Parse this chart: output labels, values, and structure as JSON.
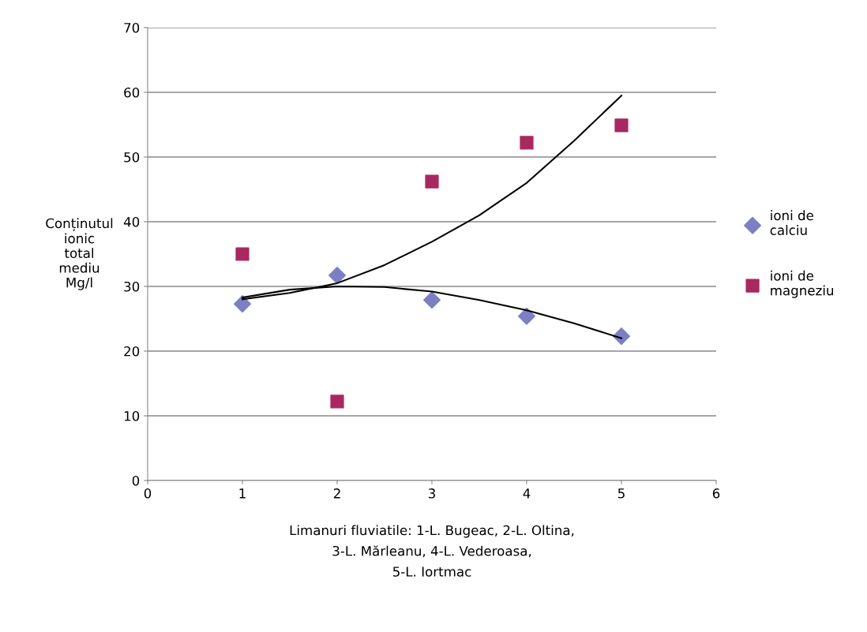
{
  "chart_data": {
    "type": "scatter",
    "ylabel": "Conținutul\nionic\ntotal\nmediu\nMg/l",
    "xlabel": "Limanuri fluviatile: 1-L. Bugeac, 2-L. Oltina,\n3-L. Mărleanu, 4-L. Vederoasa,\n5-L. Iortmac",
    "x": [
      1,
      2,
      3,
      4,
      5
    ],
    "series": [
      {
        "name": "ioni de\ncalciu",
        "color": "#7b7fc4",
        "marker": "diamond",
        "values": [
          27.3,
          31.7,
          27.9,
          25.4,
          22.3
        ]
      },
      {
        "name": "ioni de\nmagneziu",
        "color": "#a8285f",
        "marker": "square",
        "values": [
          35.0,
          12.2,
          46.2,
          52.2,
          54.9
        ]
      },
      {
        "type": "line",
        "color": "#000000",
        "marker": "none",
        "line_style": "solid",
        "x": [
          1,
          1.5,
          2,
          2.5,
          3,
          3.5,
          4,
          4.5,
          5
        ],
        "values": [
          28.3,
          29.5,
          30.0,
          29.9,
          29.2,
          27.9,
          26.3,
          24.3,
          22.0
        ]
      },
      {
        "type": "line",
        "color": "#000000",
        "marker": "none",
        "line_style": "solid",
        "x": [
          1,
          1.5,
          2,
          2.5,
          3,
          3.5,
          4,
          4.5,
          5
        ],
        "values": [
          28.0,
          29.0,
          30.5,
          33.3,
          36.9,
          41.0,
          46.0,
          52.5,
          59.5
        ]
      }
    ],
    "xlim": [
      0,
      6
    ],
    "xticks": [
      0,
      1,
      2,
      3,
      4,
      5,
      6
    ],
    "ylim": [
      0,
      70
    ],
    "yticks": [
      0,
      10,
      20,
      30,
      40,
      50,
      60,
      70
    ],
    "grid": "y",
    "legend": "right"
  }
}
